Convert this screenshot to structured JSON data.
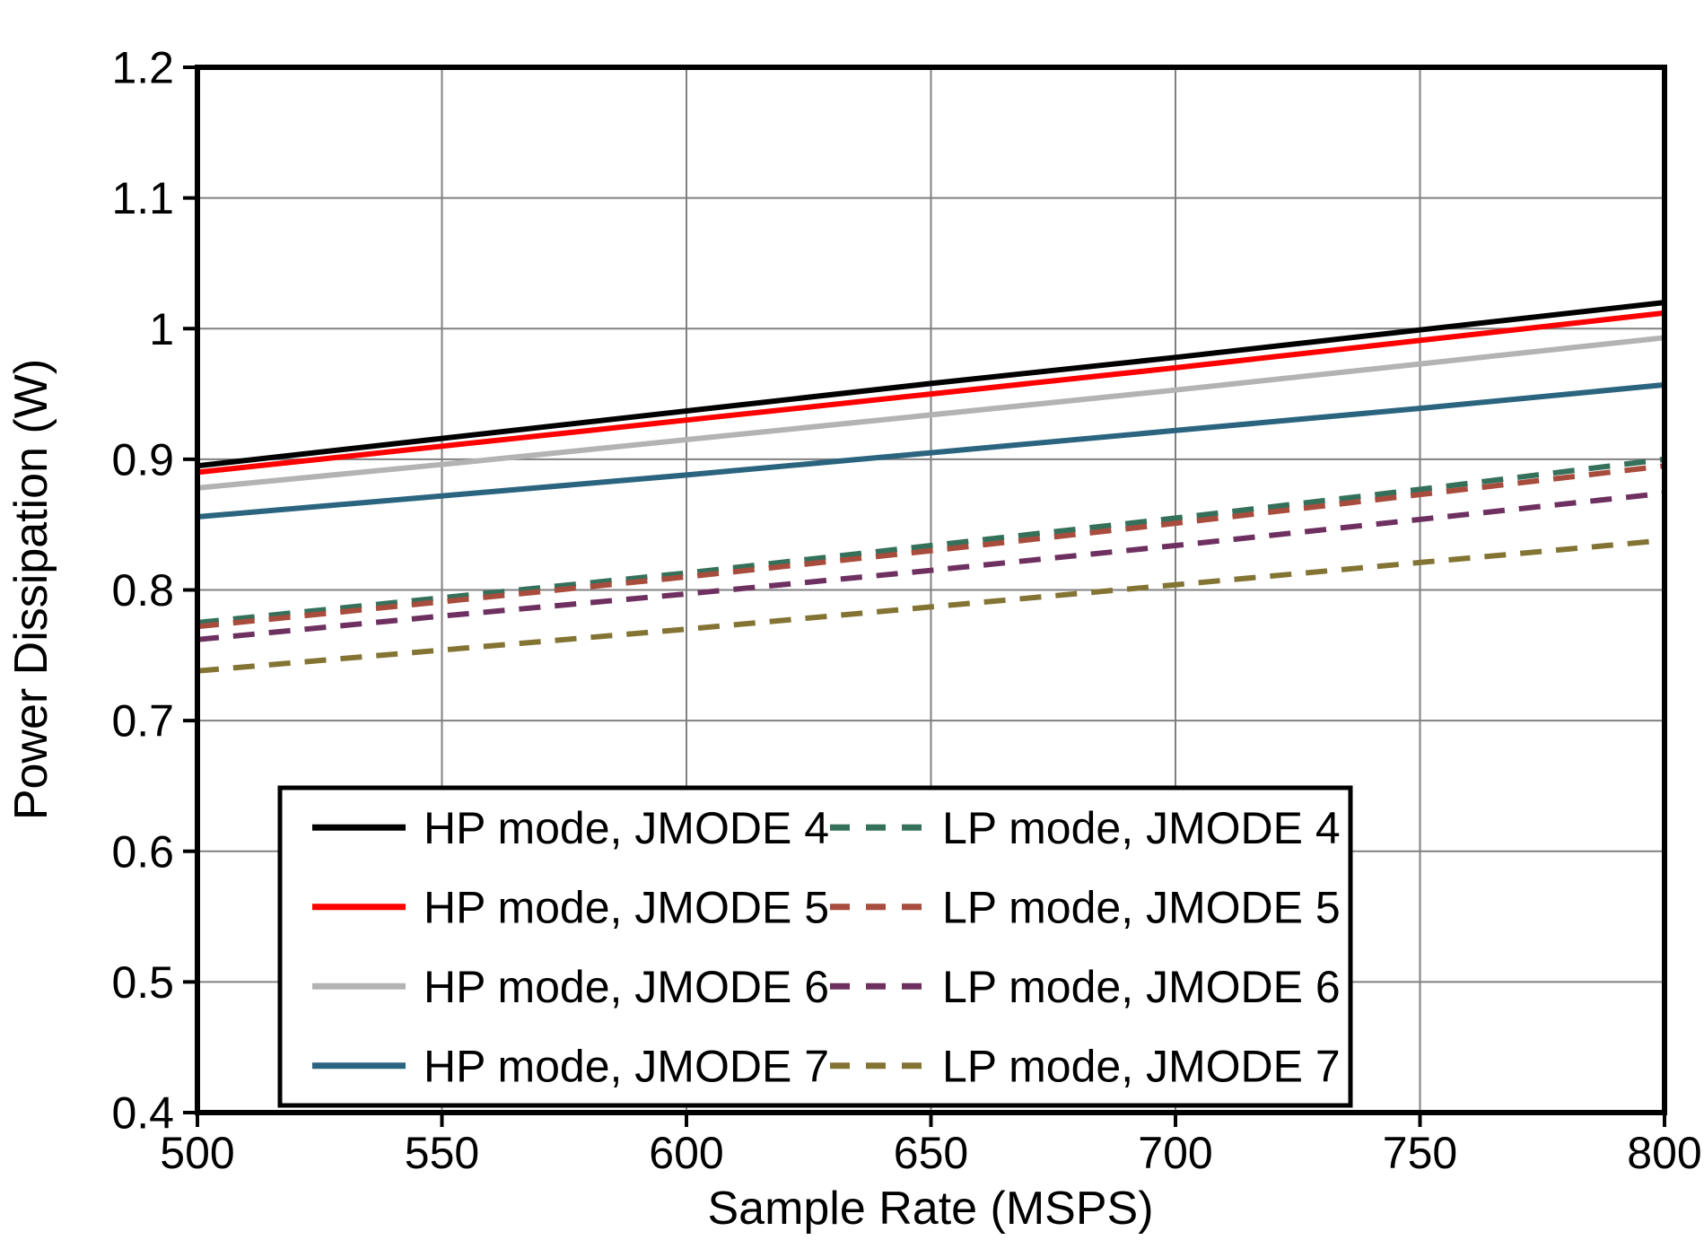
{
  "page": {
    "background": "#ffffff"
  },
  "chart_data": {
    "type": "line",
    "title": "",
    "xlabel": "Sample Rate (MSPS)",
    "ylabel": "Power Dissipation (W)",
    "xlim": [
      500,
      800
    ],
    "ylim": [
      0.4,
      1.2
    ],
    "xticks": [
      500,
      550,
      600,
      650,
      700,
      750,
      800
    ],
    "yticks": [
      0.4,
      0.5,
      0.6,
      0.7,
      0.8,
      0.9,
      1,
      1.1,
      1.2
    ],
    "grid": true,
    "legend_position": "inside-bottom-left",
    "colors": {
      "grid": "#808080",
      "axis": "#000000",
      "text": "#000000",
      "legend_background": "#ffffff",
      "legend_border": "#000000"
    },
    "x": [
      500,
      550,
      600,
      650,
      700,
      750,
      800
    ],
    "series": [
      {
        "name": "HP mode, JMODE 4",
        "mode": "HP",
        "style": "solid",
        "color": "#000000",
        "values": [
          0.895,
          0.916,
          0.937,
          0.958,
          0.978,
          0.999,
          1.02
        ]
      },
      {
        "name": "HP mode, JMODE 5",
        "mode": "HP",
        "style": "solid",
        "color": "#ff0000",
        "values": [
          0.89,
          0.91,
          0.93,
          0.95,
          0.97,
          0.991,
          1.012
        ]
      },
      {
        "name": "HP mode, JMODE 6",
        "mode": "HP",
        "style": "solid",
        "color": "#b3b3b3",
        "values": [
          0.878,
          0.896,
          0.915,
          0.934,
          0.953,
          0.973,
          0.993
        ]
      },
      {
        "name": "HP mode, JMODE 7",
        "mode": "HP",
        "style": "solid",
        "color": "#2a647e",
        "values": [
          0.856,
          0.872,
          0.888,
          0.905,
          0.922,
          0.939,
          0.957
        ]
      },
      {
        "name": "LP mode, JMODE 4",
        "mode": "LP",
        "style": "dashed",
        "color": "#35715a",
        "values": [
          0.775,
          0.794,
          0.813,
          0.834,
          0.855,
          0.877,
          0.9
        ]
      },
      {
        "name": "LP mode, JMODE 5",
        "mode": "LP",
        "style": "dashed",
        "color": "#a84c3d",
        "values": [
          0.772,
          0.791,
          0.81,
          0.83,
          0.851,
          0.873,
          0.895
        ]
      },
      {
        "name": "LP mode, JMODE 6",
        "mode": "LP",
        "style": "dashed",
        "color": "#6e3060",
        "values": [
          0.762,
          0.78,
          0.797,
          0.815,
          0.834,
          0.854,
          0.874
        ]
      },
      {
        "name": "LP mode, JMODE 7",
        "mode": "LP",
        "style": "dashed",
        "color": "#837434",
        "values": [
          0.738,
          0.754,
          0.77,
          0.787,
          0.804,
          0.821,
          0.838
        ]
      }
    ]
  }
}
